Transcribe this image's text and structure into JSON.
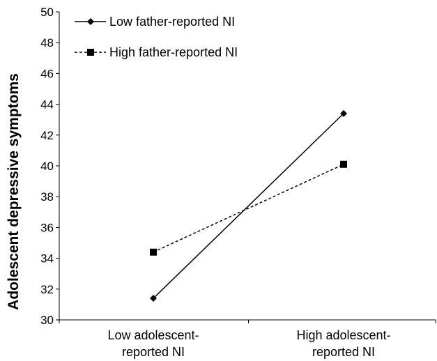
{
  "chart_data": {
    "type": "line",
    "title": "",
    "xlabel": "",
    "ylabel": "Adolescent depressive symptoms",
    "categories": [
      [
        "Low adolescent-",
        "reported NI"
      ],
      [
        "High adolescent-",
        "reported NI"
      ]
    ],
    "ylim": [
      30,
      50
    ],
    "yticks": [
      30,
      32,
      34,
      36,
      38,
      40,
      42,
      44,
      46,
      48,
      50
    ],
    "grid": false,
    "legend_position": "top-left",
    "series": [
      {
        "name": "Low father-reported NI",
        "values": [
          31.4,
          43.4
        ],
        "line": "solid",
        "marker": "diamond",
        "color": "#000000"
      },
      {
        "name": "High father-reported NI",
        "values": [
          34.4,
          40.1
        ],
        "line": "dashed",
        "marker": "square",
        "color": "#000000"
      }
    ]
  }
}
